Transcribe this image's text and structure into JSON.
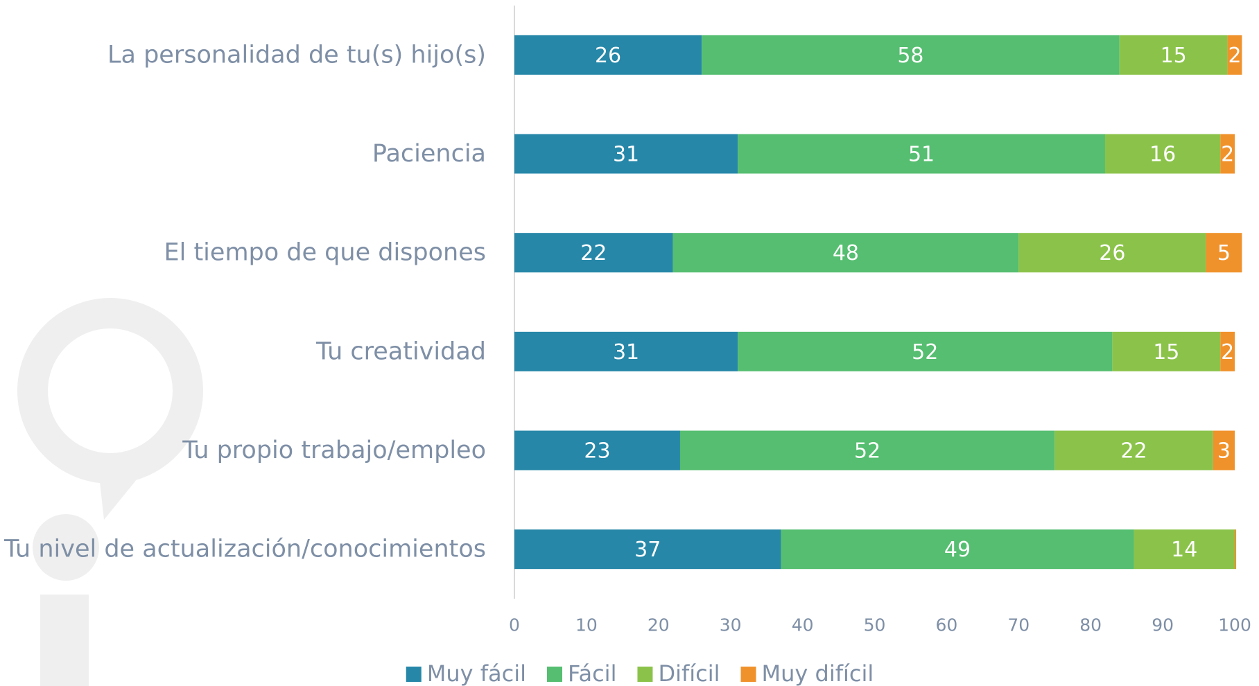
{
  "chart_data": {
    "type": "stacked-bar-horizontal",
    "categories": [
      "La personalidad de tu(s) hijo(s)",
      "Paciencia",
      "El tiempo de que dispones",
      "Tu creatividad",
      "Tu propio trabajo/empleo",
      "Tu nivel de actualización/conocimientos"
    ],
    "series": [
      {
        "name": "Muy fácil",
        "color": "#2687a8",
        "values": [
          26,
          31,
          22,
          31,
          23,
          37
        ]
      },
      {
        "name": "Fácil",
        "color": "#55be70",
        "values": [
          58,
          51,
          48,
          52,
          52,
          49
        ]
      },
      {
        "name": "Difícil",
        "color": "#8bc34a",
        "values": [
          15,
          16,
          26,
          15,
          22,
          14
        ]
      },
      {
        "name": "Muy difícil",
        "color": "#f0922c",
        "values": [
          2,
          2,
          5,
          2,
          3,
          0.2
        ]
      }
    ],
    "xlim": [
      0,
      100
    ],
    "xticks": [
      0,
      10,
      20,
      30,
      40,
      50,
      60,
      70,
      80,
      90,
      100
    ],
    "legend": "bottom"
  }
}
